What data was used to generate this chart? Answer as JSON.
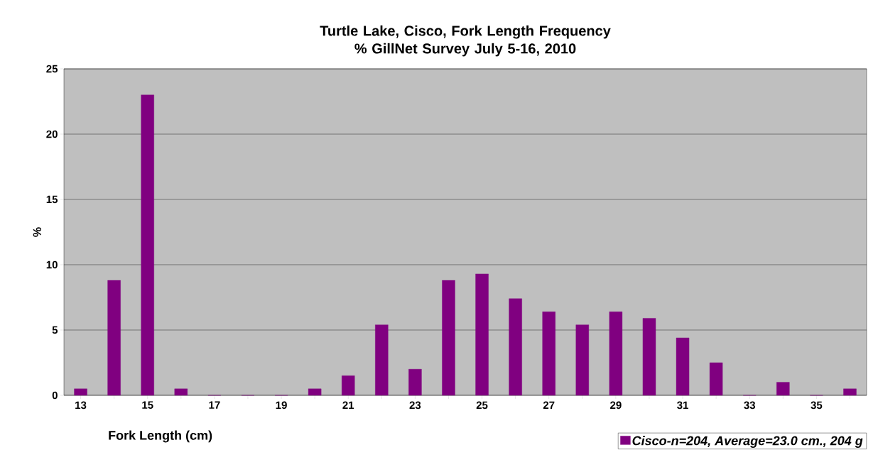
{
  "chart_data": {
    "type": "bar",
    "title": "Turtle Lake, Cisco, Fork Length Frequency % GillNet Survey July 5-16, 2010",
    "xlabel": "Fork Length (cm)",
    "ylabel": "%",
    "categories": [
      "13",
      null,
      "15",
      null,
      "17",
      null,
      "19",
      null,
      "21",
      null,
      "23",
      null,
      "25",
      null,
      "27",
      null,
      "29",
      null,
      "31",
      null,
      "33",
      null,
      "35",
      null
    ],
    "series": [
      {
        "name": "Cisco-n=204, Average=23.0 cm., 204 g",
        "color": "#800080",
        "values": [
          0.5,
          8.8,
          23.0,
          0.5,
          0,
          0,
          0,
          0.5,
          1.5,
          5.4,
          2.0,
          8.8,
          9.3,
          7.4,
          6.4,
          5.4,
          6.4,
          5.9,
          4.4,
          2.5,
          0,
          1.0,
          0,
          0.5
        ]
      }
    ],
    "ylim": [
      0,
      25
    ],
    "yticks": [
      0,
      5,
      10,
      15,
      20,
      25
    ],
    "grid": "y",
    "legend": "bottom right"
  }
}
